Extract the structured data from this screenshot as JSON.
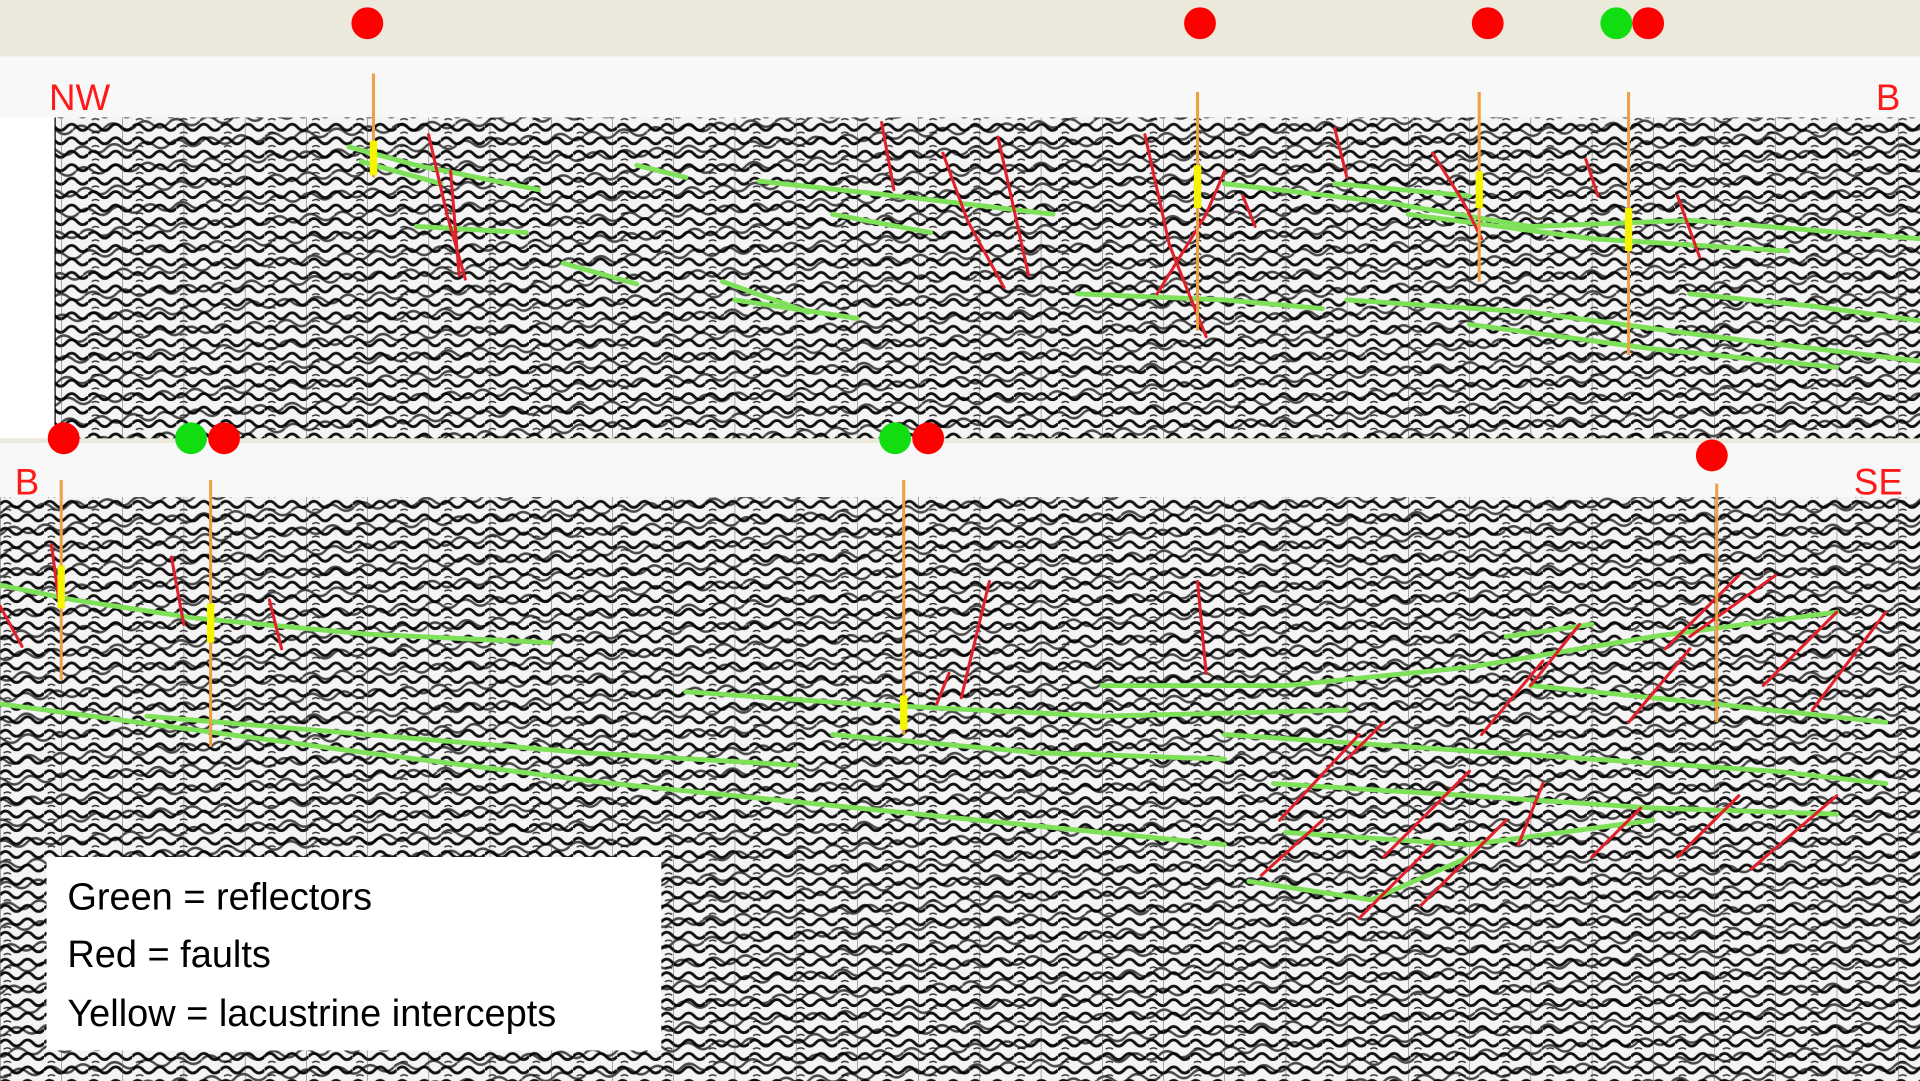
{
  "labels": {
    "nw": "NW",
    "b_top": "B",
    "b_bottom": "B",
    "se": "SE"
  },
  "legend": [
    "Green = reflectors",
    "Red = faults",
    "Yellow = lacustrine intercepts"
  ]
}
